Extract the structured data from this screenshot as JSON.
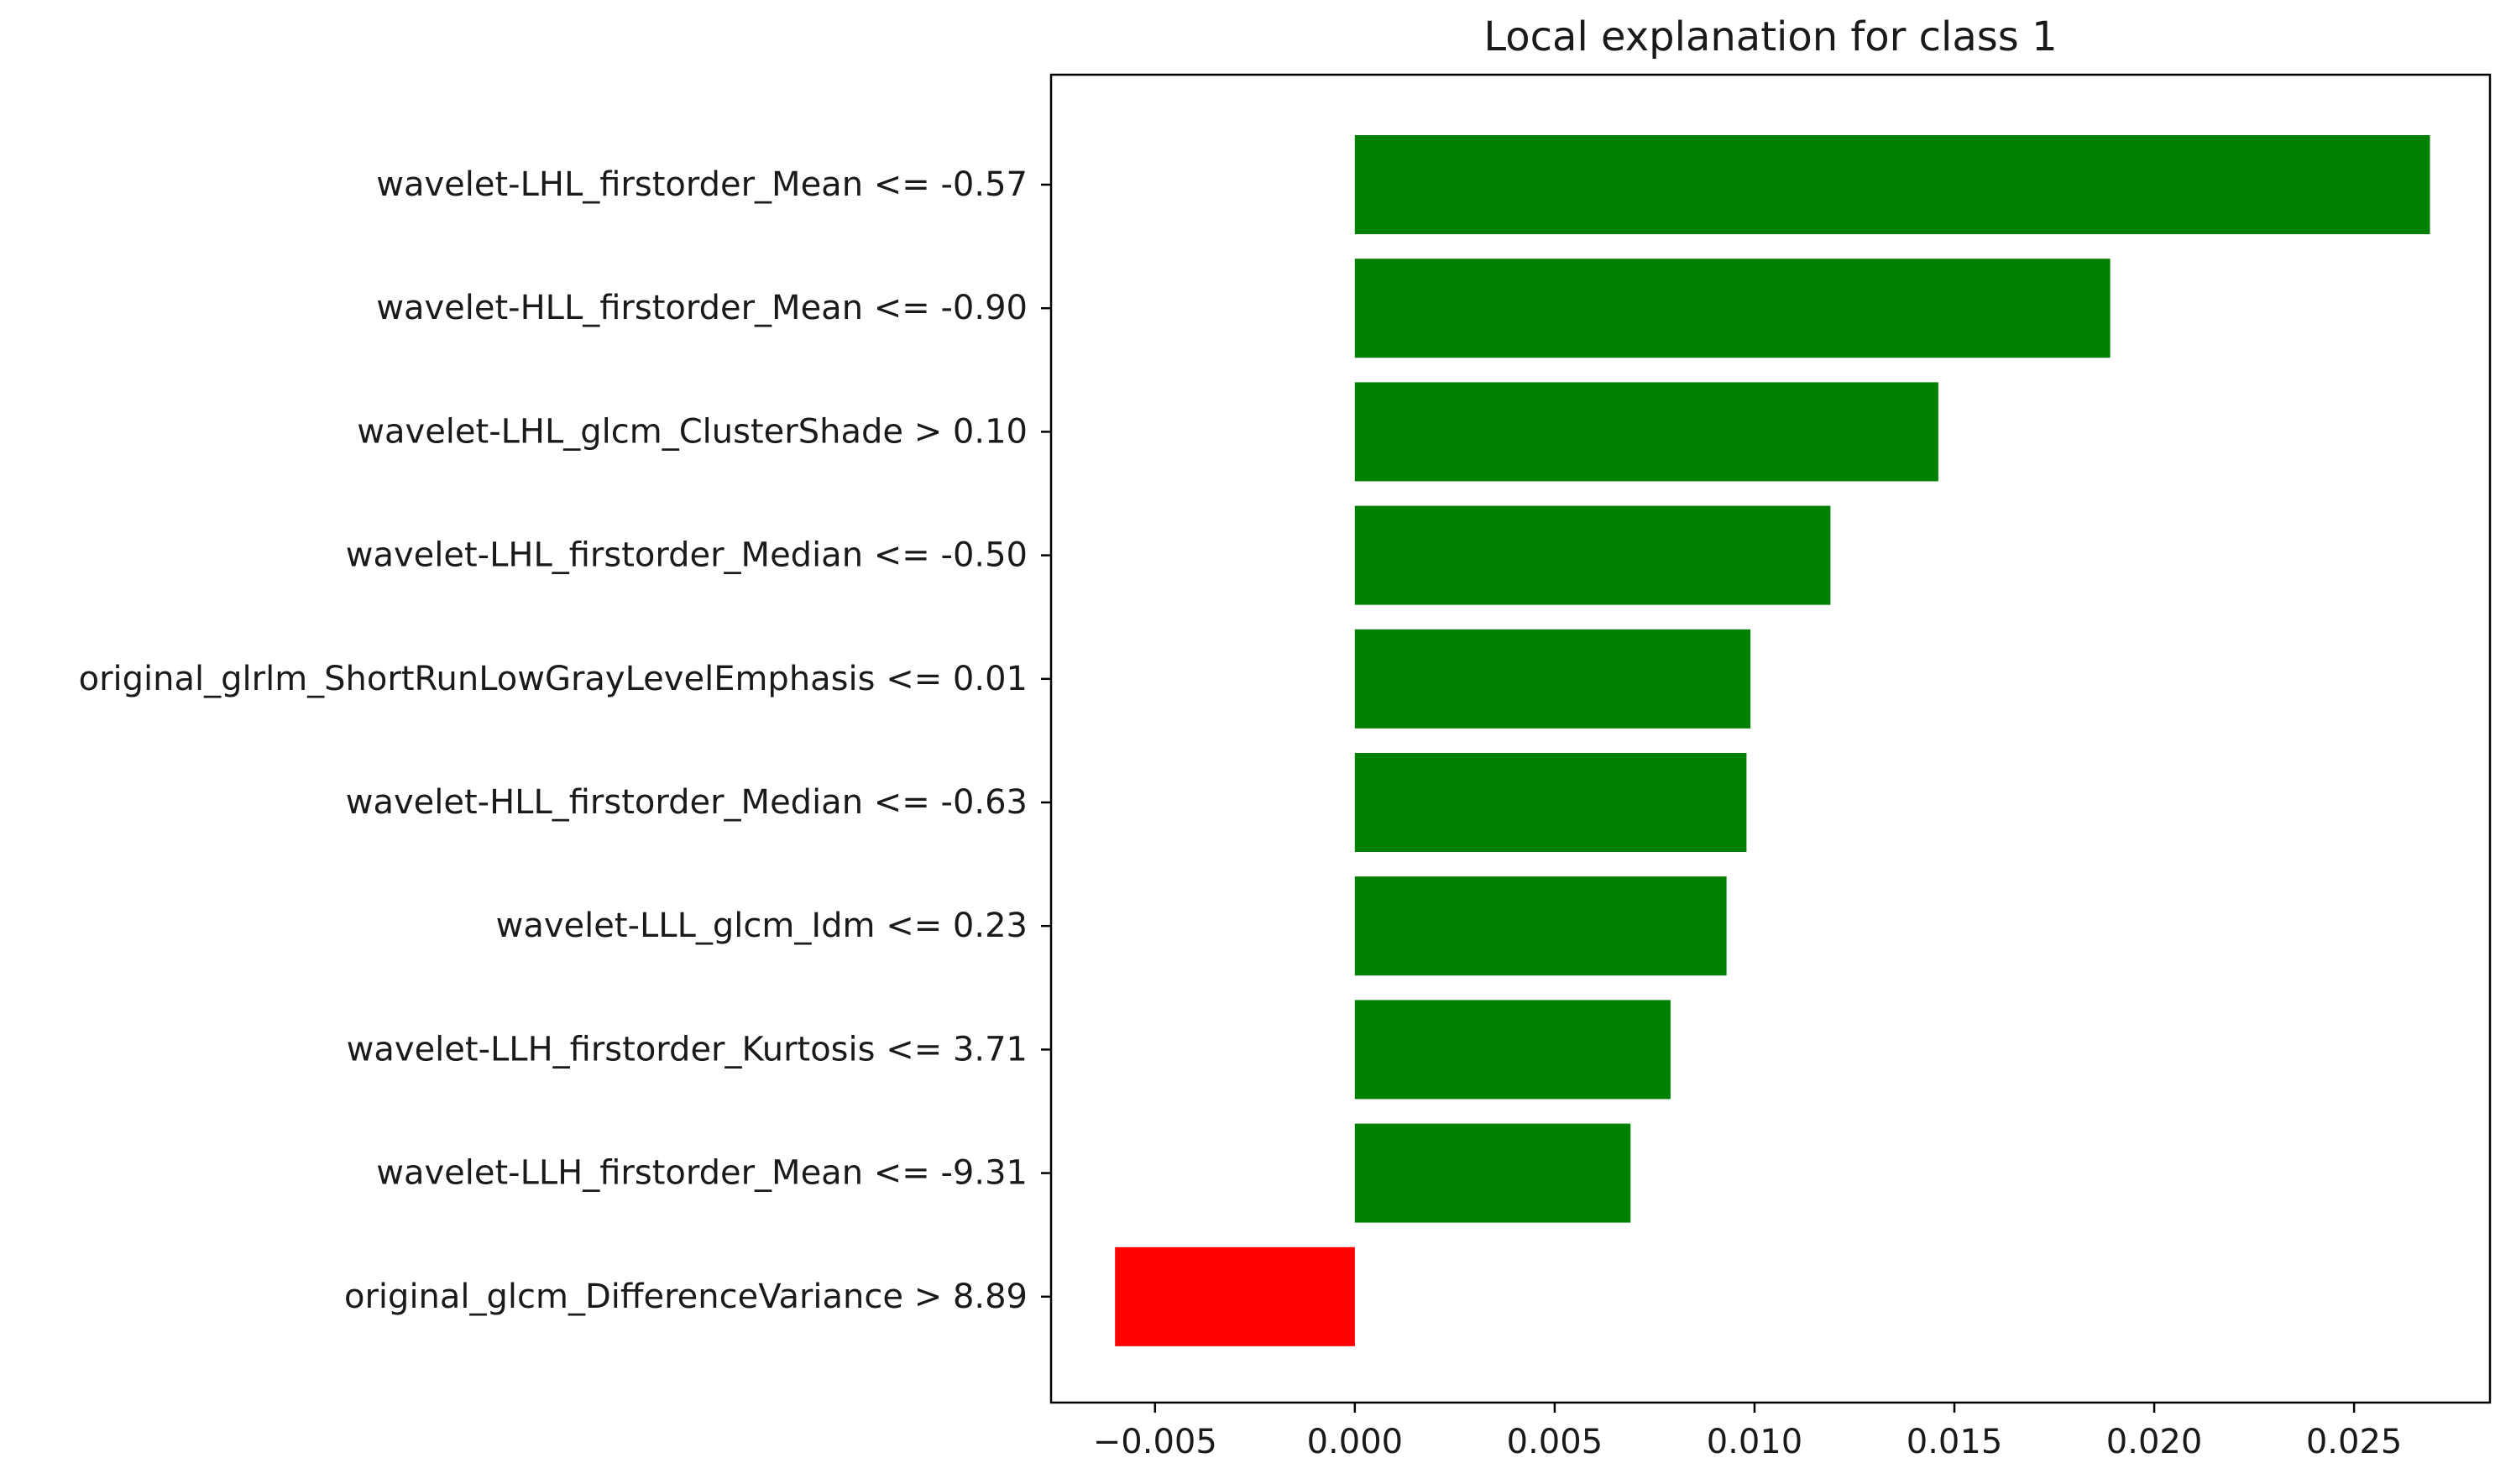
{
  "chart_data": {
    "type": "bar",
    "orientation": "horizontal",
    "title": "Local explanation for class 1",
    "xlabel": "",
    "ylabel": "",
    "categories": [
      "wavelet-LHL_firstorder_Mean <= -0.57",
      "wavelet-HLL_firstorder_Mean <= -0.90",
      "wavelet-LHL_glcm_ClusterShade > 0.10",
      "wavelet-LHL_firstorder_Median <= -0.50",
      "original_glrlm_ShortRunLowGrayLevelEmphasis <= 0.01",
      "wavelet-HLL_firstorder_Median <= -0.63",
      "wavelet-LLL_glcm_Idm <= 0.23",
      "wavelet-LLH_firstorder_Kurtosis <= 3.71",
      "wavelet-LLH_firstorder_Mean <= -9.31",
      "original_glcm_DifferenceVariance > 8.89"
    ],
    "values": [
      0.0269,
      0.0189,
      0.0146,
      0.0119,
      0.0099,
      0.0098,
      0.0093,
      0.0079,
      0.0069,
      -0.006
    ],
    "xlim": [
      -0.0076,
      0.0284
    ],
    "xticks": [
      -0.005,
      0.0,
      0.005,
      0.01,
      0.015,
      0.02,
      0.025
    ],
    "xtick_labels": [
      "−0.005",
      "0.000",
      "0.005",
      "0.010",
      "0.015",
      "0.020",
      "0.025"
    ],
    "colors": {
      "positive": "#008000",
      "negative": "#ff0000",
      "axes": "#000000",
      "text": "#1a1a1a"
    },
    "grid": false,
    "legend": "none"
  }
}
